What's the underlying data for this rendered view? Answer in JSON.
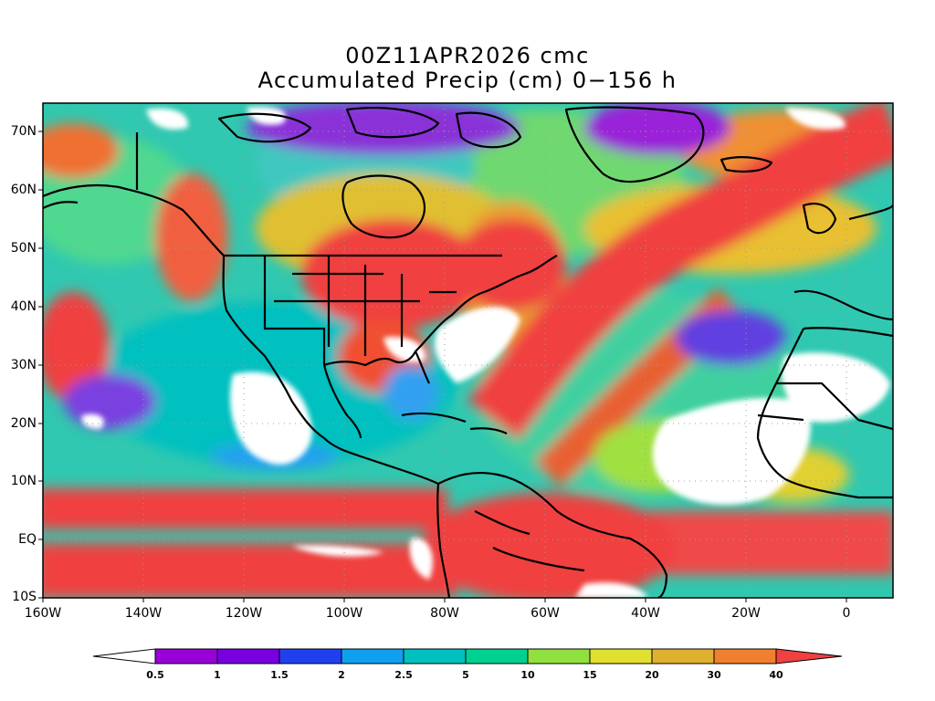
{
  "title": {
    "line1": "00Z11APR2026 cmc",
    "line2": "Accumulated Precip (cm) 0−156 h"
  },
  "axes": {
    "lat_labels": [
      "70N",
      "60N",
      "50N",
      "40N",
      "30N",
      "20N",
      "10N",
      "EQ",
      "10S"
    ],
    "lon_labels": [
      "160W",
      "140W",
      "120W",
      "100W",
      "80W",
      "60W",
      "40W",
      "20W",
      "0"
    ]
  },
  "colorbar": {
    "levels": [
      "0.5",
      "1",
      "1.5",
      "2",
      "2.5",
      "5",
      "10",
      "15",
      "20",
      "30",
      "40"
    ],
    "colors": [
      "#9a00d8",
      "#7800e0",
      "#2040f0",
      "#10a0f0",
      "#00c0c0",
      "#00d090",
      "#90e040",
      "#e0e030",
      "#e0b030",
      "#f08030",
      "#f04040"
    ]
  }
}
